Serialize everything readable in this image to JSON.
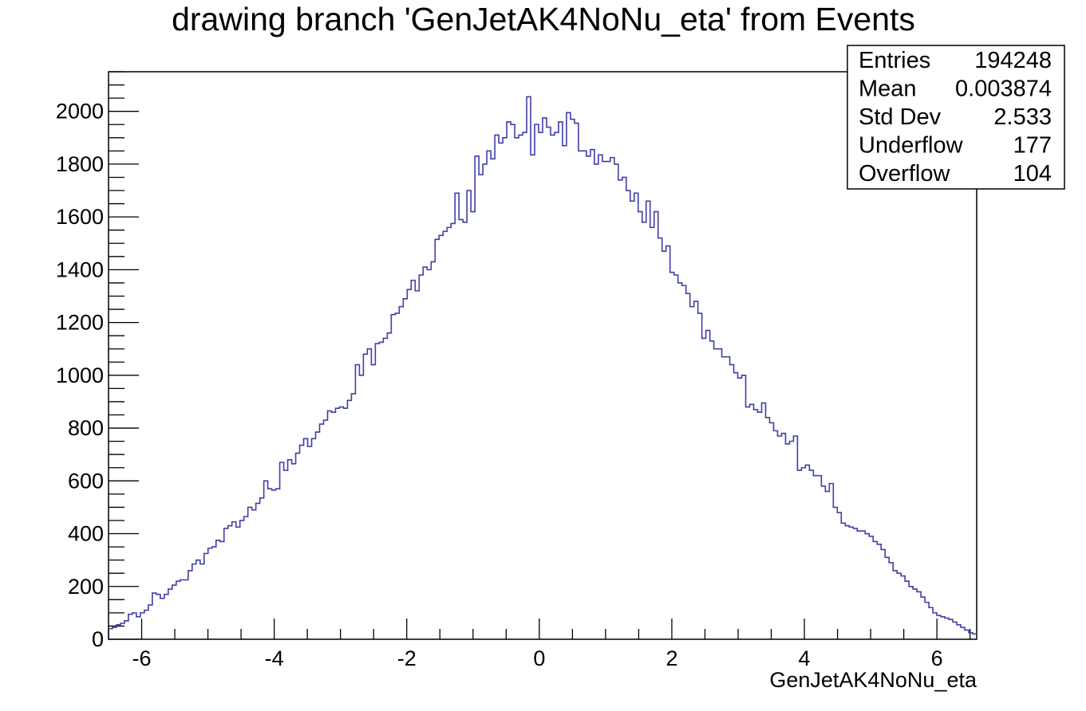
{
  "chart_data": {
    "type": "bar",
    "title": "drawing branch 'GenJetAK4NoNu_eta' from Events",
    "xlabel": "GenJetAK4NoNu_eta",
    "ylabel": "",
    "xlim": [
      -6.5,
      6.6
    ],
    "ylim": [
      0,
      2150
    ],
    "x_ticks": [
      -6,
      -4,
      -2,
      0,
      2,
      4,
      6
    ],
    "y_ticks": [
      0,
      200,
      400,
      600,
      800,
      1000,
      1200,
      1400,
      1600,
      1800,
      2000
    ],
    "line_color": "#3f3fa6",
    "grid": false,
    "legend": "none",
    "bin_edges_range": [
      -6.5,
      6.6
    ],
    "values": [
      40,
      45,
      55,
      60,
      70,
      95,
      100,
      85,
      100,
      110,
      130,
      175,
      170,
      155,
      170,
      190,
      205,
      220,
      225,
      225,
      260,
      285,
      300,
      285,
      325,
      345,
      350,
      375,
      370,
      420,
      430,
      445,
      425,
      450,
      465,
      500,
      490,
      515,
      535,
      600,
      570,
      565,
      570,
      670,
      640,
      680,
      665,
      705,
      735,
      760,
      730,
      760,
      785,
      815,
      830,
      865,
      860,
      875,
      880,
      875,
      905,
      930,
      1040,
      1000,
      1080,
      1100,
      1040,
      1120,
      1125,
      1140,
      1160,
      1230,
      1235,
      1260,
      1290,
      1325,
      1360,
      1320,
      1380,
      1410,
      1400,
      1430,
      1515,
      1530,
      1545,
      1560,
      1575,
      1690,
      1590,
      1580,
      1700,
      1620,
      1830,
      1760,
      1800,
      1850,
      1820,
      1910,
      1880,
      1900,
      1960,
      1950,
      1900,
      1910,
      1920,
      2055,
      1835,
      1950,
      1920,
      1975,
      1940,
      1910,
      1920,
      1960,
      1870,
      1995,
      1970,
      1955,
      1850,
      1850,
      1830,
      1855,
      1800,
      1835,
      1810,
      1810,
      1825,
      1800,
      1740,
      1750,
      1700,
      1660,
      1690,
      1620,
      1580,
      1660,
      1560,
      1620,
      1520,
      1470,
      1490,
      1390,
      1380,
      1350,
      1340,
      1310,
      1260,
      1280,
      1235,
      1140,
      1170,
      1130,
      1100,
      1100,
      1070,
      1070,
      1040,
      1010,
      990,
      1000,
      880,
      890,
      870,
      860,
      895,
      840,
      820,
      790,
      770,
      780,
      740,
      750,
      770,
      640,
      650,
      660,
      640,
      620,
      620,
      580,
      560,
      590,
      500,
      480,
      440,
      430,
      425,
      420,
      410,
      410,
      400,
      390,
      370,
      360,
      340,
      310,
      290,
      260,
      250,
      240,
      220,
      200,
      190,
      180,
      160,
      140,
      120,
      100,
      90,
      85,
      80,
      75,
      65,
      55,
      45,
      35,
      25,
      20
    ],
    "stats": [
      {
        "label": "Entries",
        "value": "194248"
      },
      {
        "label": "Mean",
        "value": "0.003874"
      },
      {
        "label": "Std Dev",
        "value": "2.533"
      },
      {
        "label": "Underflow",
        "value": "177"
      },
      {
        "label": "Overflow",
        "value": "104"
      }
    ]
  }
}
